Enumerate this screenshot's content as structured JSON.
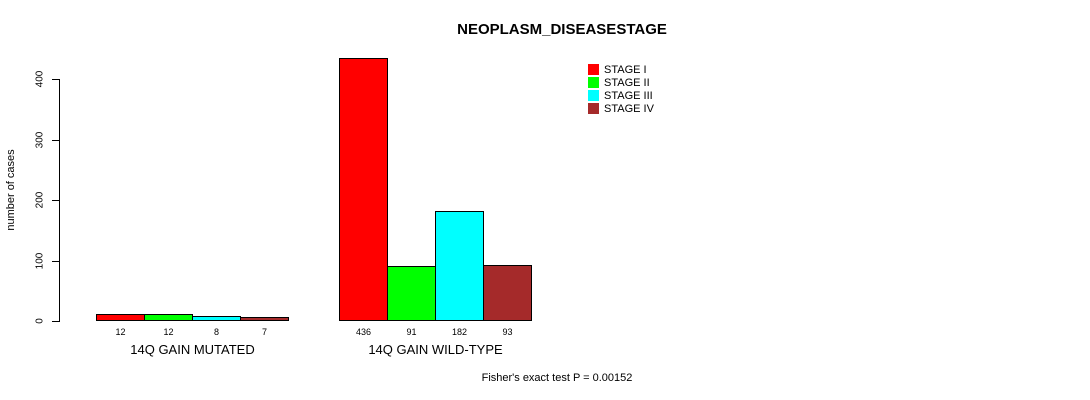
{
  "chart_data": {
    "type": "bar",
    "grouped": true,
    "title": "NEOPLASM_DISEASESTAGE",
    "xlabel": "",
    "ylabel": "number of cases",
    "categories": [
      "14Q GAIN MUTATED",
      "14Q GAIN WILD-TYPE"
    ],
    "series": [
      {
        "name": "STAGE I",
        "color": "#FF0000",
        "values": [
          12,
          436
        ]
      },
      {
        "name": "STAGE II",
        "color": "#00FF00",
        "values": [
          12,
          91
        ]
      },
      {
        "name": "STAGE III",
        "color": "#00FFFF",
        "values": [
          8,
          182
        ]
      },
      {
        "name": "STAGE IV",
        "color": "#A52A2A",
        "values": [
          7,
          93
        ]
      }
    ],
    "yticks": [
      0,
      100,
      200,
      300,
      400
    ],
    "ylim": [
      0,
      436
    ],
    "grid": false,
    "bar_value_labels_shown": true,
    "legend_position": "top-right",
    "annotation": "Fisher's exact test P = 0.00152",
    "axis_color": "#000000",
    "background_color": "#FFFFFF"
  }
}
